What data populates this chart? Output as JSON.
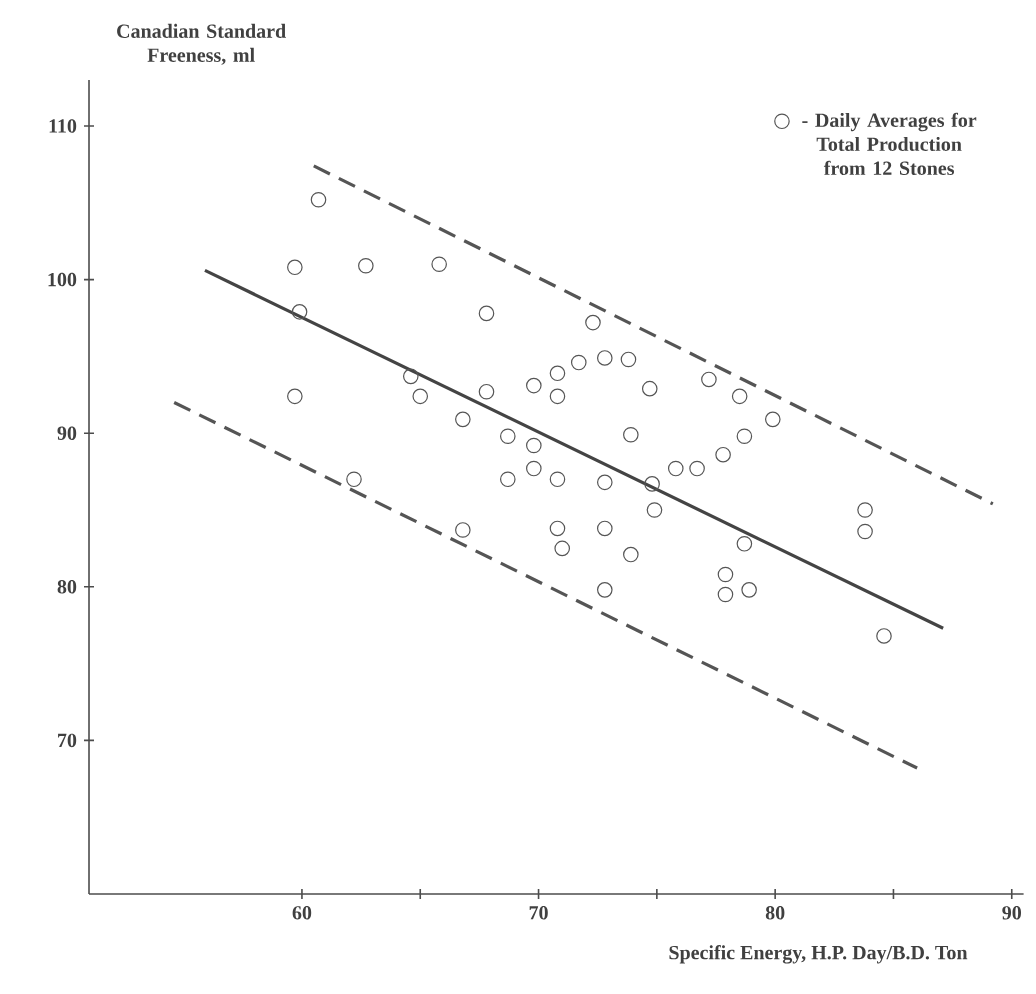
{
  "chart_data": {
    "type": "scatter",
    "xlabel": "Specific Energy,  H.P. Day/B.D. Ton",
    "ylabel": "Canadian Standard Freeness, ml",
    "xlim": [
      51,
      90.5
    ],
    "ylim": [
      60,
      113
    ],
    "xticks": [
      60,
      {
        "value": 65,
        "label": null
      },
      70,
      {
        "value": 75,
        "label": null
      },
      80,
      {
        "value": 85,
        "label": null
      },
      90
    ],
    "yticks": [
      70,
      80,
      90,
      100,
      110
    ],
    "grid": false,
    "legend": "top right",
    "series": [
      {
        "name": "- Daily Averages for Total Production from 12 Stones",
        "color": "#555555",
        "marker": "circle",
        "x": [
          59.7,
          60.7,
          62.7,
          65.8,
          59.9,
          67.8,
          64.6,
          65.0,
          59.7,
          67.8,
          66.8,
          68.7,
          68.7,
          62.2,
          66.8,
          72.3,
          69.8,
          70.8,
          70.8,
          71.7,
          72.8,
          73.8,
          74.7,
          77.2,
          78.5,
          79.9,
          78.7,
          77.8,
          76.7,
          75.8,
          74.8,
          73.9,
          69.8,
          69.8,
          70.8,
          72.8,
          74.9,
          83.8,
          70.8,
          71.0,
          72.8,
          73.9,
          72.8,
          78.7,
          77.9,
          77.9,
          78.9,
          83.8,
          84.6
        ],
        "values": [
          100.8,
          105.2,
          100.9,
          101.0,
          97.9,
          97.8,
          93.7,
          92.4,
          92.4,
          92.7,
          90.9,
          89.8,
          87.0,
          87.0,
          83.7,
          97.2,
          93.1,
          93.9,
          92.4,
          94.6,
          94.9,
          94.8,
          92.9,
          93.5,
          92.4,
          90.9,
          89.8,
          88.6,
          87.7,
          87.7,
          86.7,
          89.9,
          89.2,
          87.7,
          87.0,
          86.8,
          85.0,
          85.0,
          83.8,
          82.5,
          83.8,
          82.1,
          79.8,
          82.8,
          80.8,
          79.5,
          79.8,
          83.6,
          76.8
        ]
      },
      {
        "type": "line",
        "color": "#444444",
        "line_style": "solid",
        "x": [
          55.9,
          87.1
        ],
        "values": [
          100.6,
          77.3
        ]
      },
      {
        "type": "line",
        "color": "#555555",
        "line_style": "dashed",
        "x": [
          60.5,
          89.2
        ],
        "values": [
          107.4,
          85.4
        ]
      },
      {
        "type": "line",
        "color": "#555555",
        "line_style": "dashed",
        "x": [
          54.6,
          86.0
        ],
        "values": [
          92.0,
          68.2
        ]
      }
    ]
  }
}
